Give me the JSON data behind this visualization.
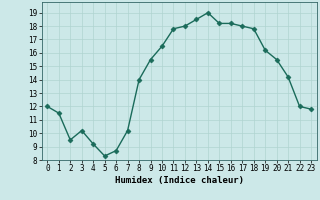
{
  "title": "",
  "xlabel": "Humidex (Indice chaleur)",
  "ylabel": "",
  "x": [
    0,
    1,
    2,
    3,
    4,
    5,
    6,
    7,
    8,
    9,
    10,
    11,
    12,
    13,
    14,
    15,
    16,
    17,
    18,
    19,
    20,
    21,
    22,
    23
  ],
  "y": [
    12.0,
    11.5,
    9.5,
    10.2,
    9.2,
    8.3,
    8.7,
    10.2,
    14.0,
    15.5,
    16.5,
    17.8,
    18.0,
    18.5,
    19.0,
    18.2,
    18.2,
    18.0,
    17.8,
    16.2,
    15.5,
    14.2,
    12.0,
    11.8
  ],
  "line_color": "#1a6b5a",
  "marker": "D",
  "marker_size": 2.5,
  "bg_color": "#cce8e8",
  "grid_color": "#b0d4d0",
  "xlim": [
    -0.5,
    23.5
  ],
  "ylim": [
    8,
    19.8
  ],
  "yticks": [
    8,
    9,
    10,
    11,
    12,
    13,
    14,
    15,
    16,
    17,
    18,
    19
  ],
  "xticks": [
    0,
    1,
    2,
    3,
    4,
    5,
    6,
    7,
    8,
    9,
    10,
    11,
    12,
    13,
    14,
    15,
    16,
    17,
    18,
    19,
    20,
    21,
    22,
    23
  ],
  "tick_fontsize": 5.5,
  "xlabel_fontsize": 6.5,
  "linewidth": 1.0
}
